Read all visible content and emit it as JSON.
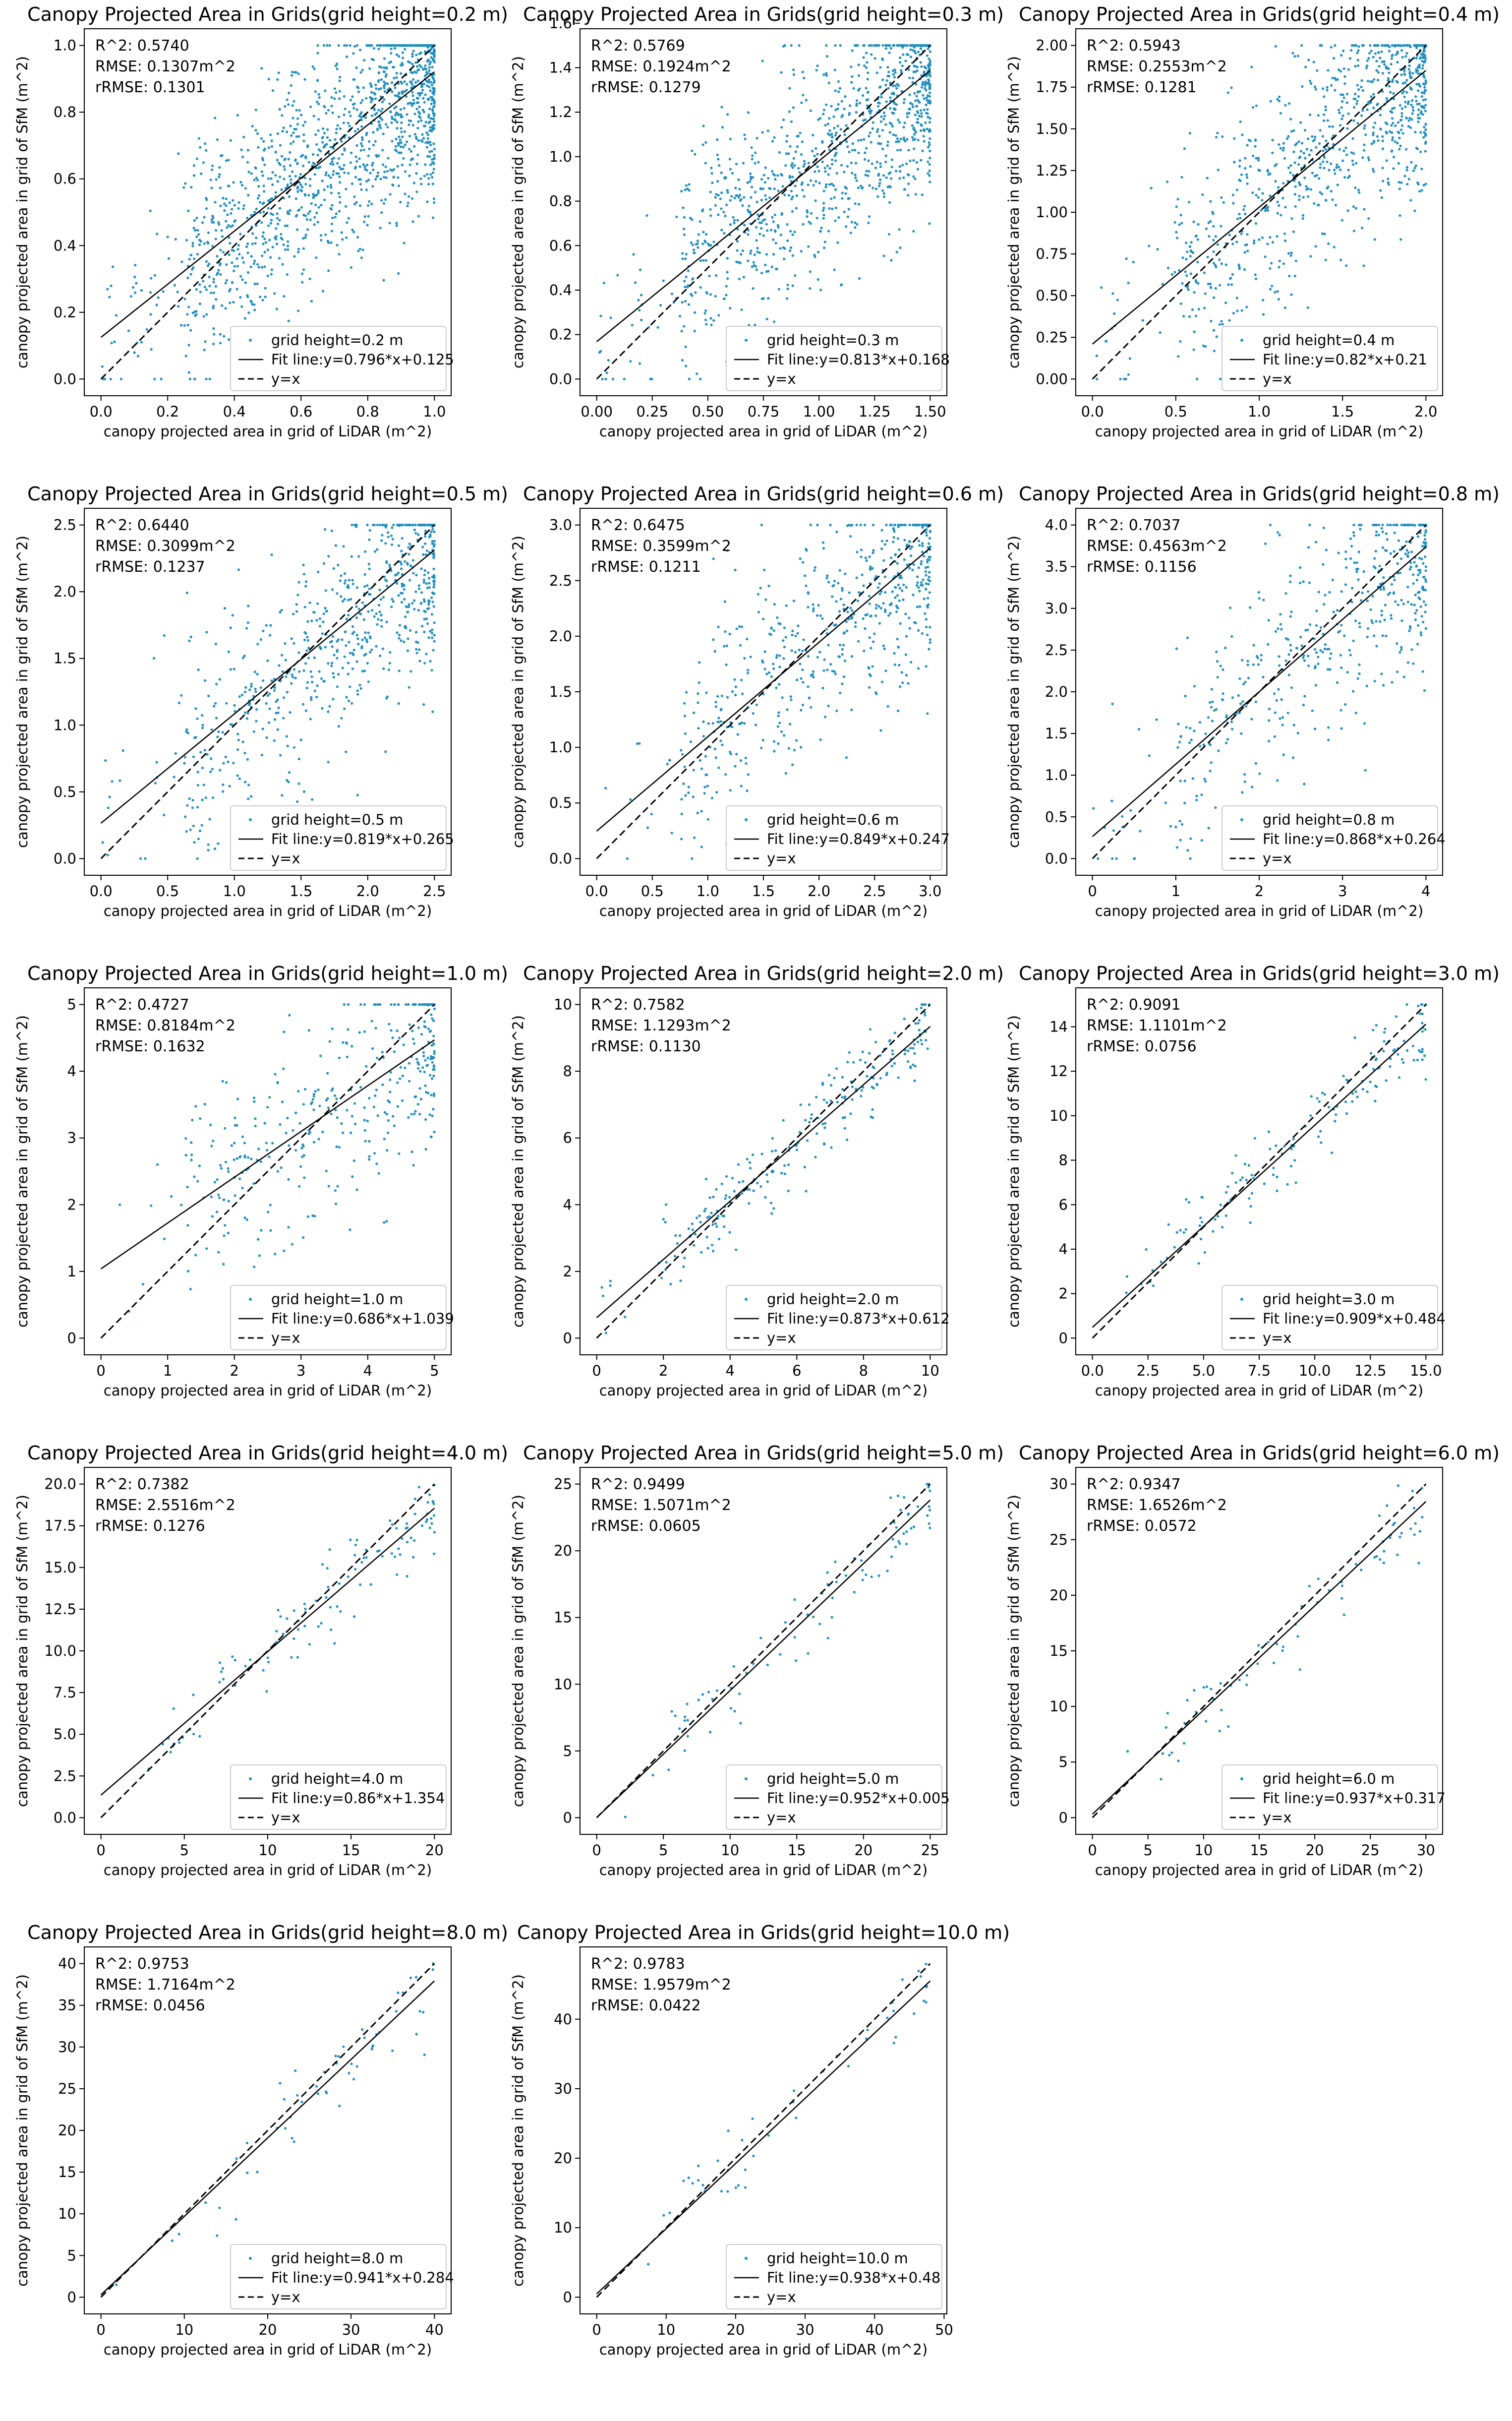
{
  "axis_labels": {
    "x": "canopy projected area in grid of LiDAR (m^2)",
    "y": "canopy projected area in grid of SfM (m^2)"
  },
  "legend_labels": {
    "yx": "y=x"
  },
  "colors": {
    "points": "#1f8fbf",
    "lines": "#000000",
    "axes": "#000000"
  },
  "chart_data": [
    {
      "type": "scatter",
      "title": "Canopy Projected Area in Grids(grid height=0.2 m)",
      "stats": [
        "R^2: 0.5740",
        "RMSE: 0.1307m^2",
        "rRMSE: 0.1301"
      ],
      "legend_points": "grid height=0.2 m",
      "legend_fit": "Fit line:y=0.796*x+0.125",
      "slope": 0.796,
      "intercept": 0.125,
      "max": 1.0,
      "xlim": [
        -0.05,
        1.05
      ],
      "ylim": [
        -0.05,
        1.05
      ],
      "xticks": [
        0,
        0.2,
        0.4,
        0.6,
        0.8,
        1.0
      ],
      "yticks": [
        0,
        0.2,
        0.4,
        0.6,
        0.8,
        1.0
      ],
      "xtick_labels": [
        "0.0",
        "0.2",
        "0.4",
        "0.6",
        "0.8",
        "1.0"
      ],
      "ytick_labels": [
        "0.0",
        "0.2",
        "0.4",
        "0.6",
        "0.8",
        "1.0"
      ],
      "xlabel": "canopy projected area in grid of LiDAR (m^2)",
      "ylabel": "canopy projected area in grid of SfM (m^2)"
    },
    {
      "type": "scatter",
      "title": "Canopy Projected Area in Grids(grid height=0.3 m)",
      "stats": [
        "R^2: 0.5769",
        "RMSE: 0.1924m^2",
        "rRMSE: 0.1279"
      ],
      "legend_points": "grid height=0.3 m",
      "legend_fit": "Fit line:y=0.813*x+0.168",
      "slope": 0.813,
      "intercept": 0.168,
      "max": 1.5,
      "xlim": [
        -0.075,
        1.575
      ],
      "ylim": [
        -0.075,
        1.575
      ],
      "xticks": [
        0,
        0.25,
        0.5,
        0.75,
        1.0,
        1.25,
        1.5
      ],
      "yticks": [
        0,
        0.2,
        0.4,
        0.6,
        0.8,
        1.0,
        1.2,
        1.4,
        1.6
      ],
      "xtick_labels": [
        "0.00",
        "0.25",
        "0.50",
        "0.75",
        "1.00",
        "1.25",
        "1.50"
      ],
      "ytick_labels": [
        "0.0",
        "0.2",
        "0.4",
        "0.6",
        "0.8",
        "1.0",
        "1.2",
        "1.4",
        "1.6"
      ],
      "xlabel": "canopy projected area in grid of LiDAR (m^2)",
      "ylabel": "canopy projected area in grid of SfM (m^2)"
    },
    {
      "type": "scatter",
      "title": "Canopy Projected Area in Grids(grid height=0.4 m)",
      "stats": [
        "R^2: 0.5943",
        "RMSE: 0.2553m^2",
        "rRMSE: 0.1281"
      ],
      "legend_points": "grid height=0.4 m",
      "legend_fit": "Fit line:y=0.82*x+0.21",
      "slope": 0.82,
      "intercept": 0.21,
      "max": 2.0,
      "xlim": [
        -0.1,
        2.1
      ],
      "ylim": [
        -0.1,
        2.1
      ],
      "xticks": [
        0,
        0.5,
        1.0,
        1.5,
        2.0
      ],
      "yticks": [
        0,
        0.25,
        0.5,
        0.75,
        1.0,
        1.25,
        1.5,
        1.75,
        2.0
      ],
      "xtick_labels": [
        "0.0",
        "0.5",
        "1.0",
        "1.5",
        "2.0"
      ],
      "ytick_labels": [
        "0.00",
        "0.25",
        "0.50",
        "0.75",
        "1.00",
        "1.25",
        "1.50",
        "1.75",
        "2.00"
      ],
      "xlabel": "canopy projected area in grid of LiDAR (m^2)",
      "ylabel": "canopy projected area in grid of SfM (m^2)"
    },
    {
      "type": "scatter",
      "title": "Canopy Projected Area in Grids(grid height=0.5 m)",
      "stats": [
        "R^2: 0.6440",
        "RMSE: 0.3099m^2",
        "rRMSE: 0.1237"
      ],
      "legend_points": "grid height=0.5 m",
      "legend_fit": "Fit line:y=0.819*x+0.265",
      "slope": 0.819,
      "intercept": 0.265,
      "max": 2.5,
      "xlim": [
        -0.125,
        2.625
      ],
      "ylim": [
        -0.125,
        2.625
      ],
      "xticks": [
        0,
        0.5,
        1.0,
        1.5,
        2.0,
        2.5
      ],
      "yticks": [
        0,
        0.5,
        1.0,
        1.5,
        2.0,
        2.5
      ],
      "xtick_labels": [
        "0.0",
        "0.5",
        "1.0",
        "1.5",
        "2.0",
        "2.5"
      ],
      "ytick_labels": [
        "0.0",
        "0.5",
        "1.0",
        "1.5",
        "2.0",
        "2.5"
      ],
      "xlabel": "canopy projected area in grid of LiDAR (m^2)",
      "ylabel": "canopy projected area in grid of SfM (m^2)"
    },
    {
      "type": "scatter",
      "title": "Canopy Projected Area in Grids(grid height=0.6 m)",
      "stats": [
        "R^2: 0.6475",
        "RMSE: 0.3599m^2",
        "rRMSE: 0.1211"
      ],
      "legend_points": "grid height=0.6 m",
      "legend_fit": "Fit line:y=0.849*x+0.247",
      "slope": 0.849,
      "intercept": 0.247,
      "max": 3.0,
      "xlim": [
        -0.15,
        3.15
      ],
      "ylim": [
        -0.15,
        3.15
      ],
      "xticks": [
        0,
        0.5,
        1.0,
        1.5,
        2.0,
        2.5,
        3.0
      ],
      "yticks": [
        0,
        0.5,
        1.0,
        1.5,
        2.0,
        2.5,
        3.0
      ],
      "xtick_labels": [
        "0.0",
        "0.5",
        "1.0",
        "1.5",
        "2.0",
        "2.5",
        "3.0"
      ],
      "ytick_labels": [
        "0.0",
        "0.5",
        "1.0",
        "1.5",
        "2.0",
        "2.5",
        "3.0"
      ],
      "xlabel": "canopy projected area in grid of LiDAR (m^2)",
      "ylabel": "canopy projected area in grid of SfM (m^2)"
    },
    {
      "type": "scatter",
      "title": "Canopy Projected Area in Grids(grid height=0.8 m)",
      "stats": [
        "R^2: 0.7037",
        "RMSE: 0.4563m^2",
        "rRMSE: 0.1156"
      ],
      "legend_points": "grid height=0.8 m",
      "legend_fit": "Fit line:y=0.868*x+0.264",
      "slope": 0.868,
      "intercept": 0.264,
      "max": 4.0,
      "xlim": [
        -0.2,
        4.2
      ],
      "ylim": [
        -0.2,
        4.2
      ],
      "xticks": [
        0,
        1,
        2,
        3,
        4
      ],
      "yticks": [
        0,
        0.5,
        1.0,
        1.5,
        2.0,
        2.5,
        3.0,
        3.5,
        4.0
      ],
      "xtick_labels": [
        "0",
        "1",
        "2",
        "3",
        "4"
      ],
      "ytick_labels": [
        "0.0",
        "0.5",
        "1.0",
        "1.5",
        "2.0",
        "2.5",
        "3.0",
        "3.5",
        "4.0"
      ],
      "xlabel": "canopy projected area in grid of LiDAR (m^2)",
      "ylabel": "canopy projected area in grid of SfM (m^2)"
    },
    {
      "type": "scatter",
      "title": "Canopy Projected Area in Grids(grid height=1.0 m)",
      "stats": [
        "R^2: 0.4727",
        "RMSE: 0.8184m^2",
        "rRMSE: 0.1632"
      ],
      "legend_points": "grid height=1.0 m",
      "legend_fit": "Fit line:y=0.686*x+1.039",
      "slope": 0.686,
      "intercept": 1.039,
      "max": 5.0,
      "xlim": [
        -0.25,
        5.25
      ],
      "ylim": [
        -0.25,
        5.25
      ],
      "xticks": [
        0,
        1,
        2,
        3,
        4,
        5
      ],
      "yticks": [
        0,
        1,
        2,
        3,
        4,
        5
      ],
      "xtick_labels": [
        "0",
        "1",
        "2",
        "3",
        "4",
        "5"
      ],
      "ytick_labels": [
        "0",
        "1",
        "2",
        "3",
        "4",
        "5"
      ],
      "xlabel": "canopy projected area in grid of LiDAR (m^2)",
      "ylabel": "canopy projected area in grid of SfM (m^2)"
    },
    {
      "type": "scatter",
      "title": "Canopy Projected Area in Grids(grid height=2.0 m)",
      "stats": [
        "R^2: 0.7582",
        "RMSE: 1.1293m^2",
        "rRMSE: 0.1130"
      ],
      "legend_points": "grid height=2.0 m",
      "legend_fit": "Fit line:y=0.873*x+0.612",
      "slope": 0.873,
      "intercept": 0.612,
      "max": 10.0,
      "xlim": [
        -0.5,
        10.5
      ],
      "ylim": [
        -0.5,
        10.5
      ],
      "xticks": [
        0,
        2,
        4,
        6,
        8,
        10
      ],
      "yticks": [
        0,
        2,
        4,
        6,
        8,
        10
      ],
      "xtick_labels": [
        "0",
        "2",
        "4",
        "6",
        "8",
        "10"
      ],
      "ytick_labels": [
        "0",
        "2",
        "4",
        "6",
        "8",
        "10"
      ],
      "xlabel": "canopy projected area in grid of LiDAR (m^2)",
      "ylabel": "canopy projected area in grid of SfM (m^2)"
    },
    {
      "type": "scatter",
      "title": "Canopy Projected Area in Grids(grid height=3.0 m)",
      "stats": [
        "R^2: 0.9091",
        "RMSE: 1.1101m^2",
        "rRMSE: 0.0756"
      ],
      "legend_points": "grid height=3.0 m",
      "legend_fit": "Fit line:y=0.909*x+0.484",
      "slope": 0.909,
      "intercept": 0.484,
      "max": 15.0,
      "xlim": [
        -0.75,
        15.75
      ],
      "ylim": [
        -0.75,
        15.75
      ],
      "xticks": [
        0,
        2.5,
        5.0,
        7.5,
        10.0,
        12.5,
        15.0
      ],
      "yticks": [
        0,
        2,
        4,
        6,
        8,
        10,
        12,
        14
      ],
      "xtick_labels": [
        "0.0",
        "2.5",
        "5.0",
        "7.5",
        "10.0",
        "12.5",
        "15.0"
      ],
      "ytick_labels": [
        "0",
        "2",
        "4",
        "6",
        "8",
        "10",
        "12",
        "14"
      ],
      "xlabel": "canopy projected area in grid of LiDAR (m^2)",
      "ylabel": "canopy projected area in grid of SfM (m^2)"
    },
    {
      "type": "scatter",
      "title": "Canopy Projected Area in Grids(grid height=4.0 m)",
      "stats": [
        "R^2: 0.7382",
        "RMSE: 2.5516m^2",
        "rRMSE: 0.1276"
      ],
      "legend_points": "grid height=4.0 m",
      "legend_fit": "Fit line:y=0.86*x+1.354",
      "slope": 0.86,
      "intercept": 1.354,
      "max": 20.0,
      "xlim": [
        -1.0,
        21.0
      ],
      "ylim": [
        -1.0,
        21.0
      ],
      "xticks": [
        0,
        5,
        10,
        15,
        20
      ],
      "yticks": [
        0,
        2.5,
        5.0,
        7.5,
        10.0,
        12.5,
        15.0,
        17.5,
        20.0
      ],
      "xtick_labels": [
        "0",
        "5",
        "10",
        "15",
        "20"
      ],
      "ytick_labels": [
        "0.0",
        "2.5",
        "5.0",
        "7.5",
        "10.0",
        "12.5",
        "15.0",
        "17.5",
        "20.0"
      ],
      "xlabel": "canopy projected area in grid of LiDAR (m^2)",
      "ylabel": "canopy projected area in grid of SfM (m^2)"
    },
    {
      "type": "scatter",
      "title": "Canopy Projected Area in Grids(grid height=5.0 m)",
      "stats": [
        "R^2: 0.9499",
        "RMSE: 1.5071m^2",
        "rRMSE: 0.0605"
      ],
      "legend_points": "grid height=5.0 m",
      "legend_fit": "Fit line:y=0.952*x+0.005",
      "slope": 0.952,
      "intercept": 0.005,
      "max": 25.0,
      "xlim": [
        -1.25,
        26.25
      ],
      "ylim": [
        -1.25,
        26.25
      ],
      "xticks": [
        0,
        5,
        10,
        15,
        20,
        25
      ],
      "yticks": [
        0,
        5,
        10,
        15,
        20,
        25
      ],
      "xtick_labels": [
        "0",
        "5",
        "10",
        "15",
        "20",
        "25"
      ],
      "ytick_labels": [
        "0",
        "5",
        "10",
        "15",
        "20",
        "25"
      ],
      "xlabel": "canopy projected area in grid of LiDAR (m^2)",
      "ylabel": "canopy projected area in grid of SfM (m^2)"
    },
    {
      "type": "scatter",
      "title": "Canopy Projected Area in Grids(grid height=6.0 m)",
      "stats": [
        "R^2: 0.9347",
        "RMSE: 1.6526m^2",
        "rRMSE: 0.0572"
      ],
      "legend_points": "grid height=6.0 m",
      "legend_fit": "Fit line:y=0.937*x+0.317",
      "slope": 0.937,
      "intercept": 0.317,
      "max": 30.0,
      "xlim": [
        -1.5,
        31.5
      ],
      "ylim": [
        -1.5,
        31.5
      ],
      "xticks": [
        0,
        5,
        10,
        15,
        20,
        25,
        30
      ],
      "yticks": [
        0,
        5,
        10,
        15,
        20,
        25,
        30
      ],
      "xtick_labels": [
        "0",
        "5",
        "10",
        "15",
        "20",
        "25",
        "30"
      ],
      "ytick_labels": [
        "0",
        "5",
        "10",
        "15",
        "20",
        "25",
        "30"
      ],
      "xlabel": "canopy projected area in grid of LiDAR (m^2)",
      "ylabel": "canopy projected area in grid of SfM (m^2)"
    },
    {
      "type": "scatter",
      "title": "Canopy Projected Area in Grids(grid height=8.0 m)",
      "stats": [
        "R^2: 0.9753",
        "RMSE: 1.7164m^2",
        "rRMSE: 0.0456"
      ],
      "legend_points": "grid height=8.0 m",
      "legend_fit": "Fit line:y=0.941*x+0.284",
      "slope": 0.941,
      "intercept": 0.284,
      "max": 40.0,
      "xlim": [
        -2.0,
        42.0
      ],
      "ylim": [
        -2.0,
        42.0
      ],
      "xticks": [
        0,
        10,
        20,
        30,
        40
      ],
      "yticks": [
        0,
        5,
        10,
        15,
        20,
        25,
        30,
        35,
        40
      ],
      "xtick_labels": [
        "0",
        "10",
        "20",
        "30",
        "40"
      ],
      "ytick_labels": [
        "0",
        "5",
        "10",
        "15",
        "20",
        "25",
        "30",
        "35",
        "40"
      ],
      "xlabel": "canopy projected area in grid of LiDAR (m^2)",
      "ylabel": "canopy projected area in grid of SfM (m^2)"
    },
    {
      "type": "scatter",
      "title": "Canopy Projected Area in Grids(grid height=10.0 m)",
      "stats": [
        "R^2: 0.9783",
        "RMSE: 1.9579m^2",
        "rRMSE: 0.0422"
      ],
      "legend_points": "grid height=10.0 m",
      "legend_fit": "Fit line:y=0.938*x+0.48",
      "slope": 0.938,
      "intercept": 0.48,
      "max": 48.0,
      "xlim": [
        -2.4,
        50.4
      ],
      "ylim": [
        -2.4,
        50.4
      ],
      "xticks": [
        0,
        10,
        20,
        30,
        40,
        50
      ],
      "yticks": [
        0,
        10,
        20,
        30,
        40
      ],
      "xtick_labels": [
        "0",
        "10",
        "20",
        "30",
        "40",
        "50"
      ],
      "ytick_labels": [
        "0",
        "10",
        "20",
        "30",
        "40"
      ],
      "xlabel": "canopy projected area in grid of LiDAR (m^2)",
      "ylabel": "canopy projected area in grid of SfM (m^2)"
    }
  ]
}
